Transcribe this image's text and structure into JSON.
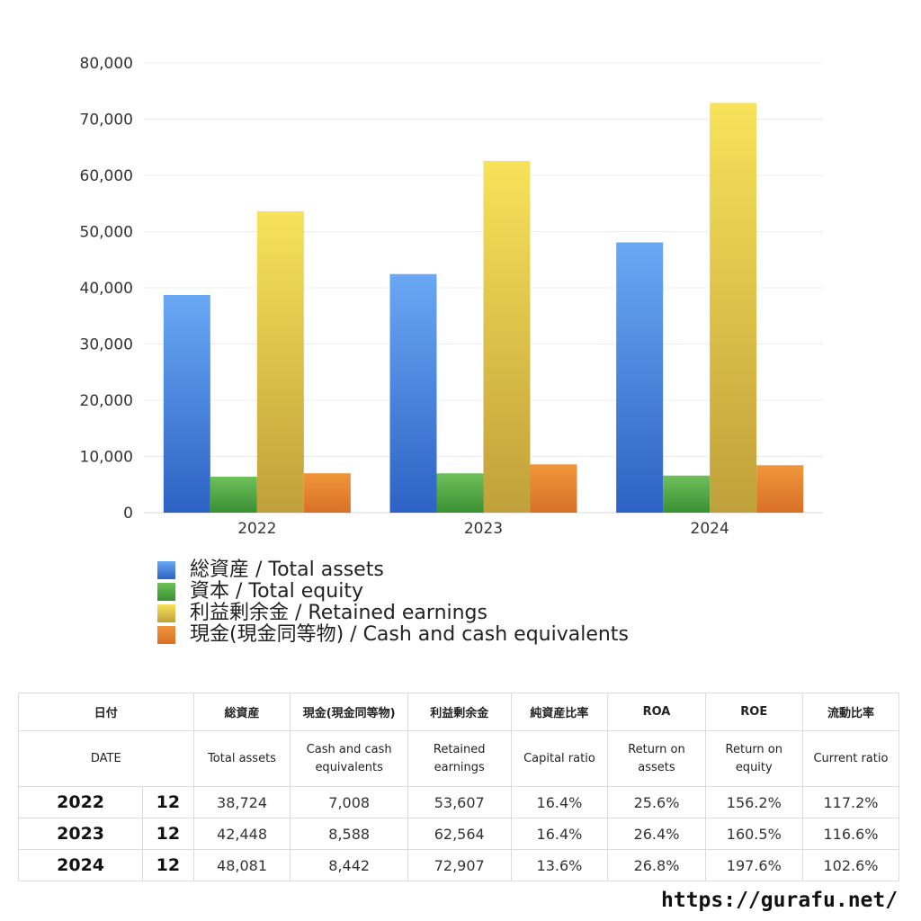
{
  "chart_data": {
    "type": "bar",
    "categories": [
      "2022",
      "2023",
      "2024"
    ],
    "series": [
      {
        "name": "総資産 / Total assets",
        "values": [
          38724,
          42448,
          48081
        ],
        "color_top": "#6aa8f4",
        "color_bottom": "#2d62c4"
      },
      {
        "name": "資本 / Total equity",
        "values": [
          6400,
          7000,
          6600
        ],
        "color_top": "#6ec05a",
        "color_bottom": "#3a8f33"
      },
      {
        "name": "利益剰余金 / Retained earnings",
        "values": [
          53607,
          62564,
          72907
        ],
        "color_top": "#f8e25a",
        "color_bottom": "#c0a03a"
      },
      {
        "name": "現金(現金同等物) / Cash and cash equivalents",
        "values": [
          7008,
          8588,
          8442
        ],
        "color_top": "#f0963a",
        "color_bottom": "#d87028"
      }
    ],
    "ylim": [
      0,
      80000
    ],
    "yticks": [
      0,
      10000,
      20000,
      30000,
      40000,
      50000,
      60000,
      70000,
      80000
    ],
    "ytick_labels": [
      "0",
      "10,000",
      "20,000",
      "30,000",
      "40,000",
      "50,000",
      "60,000",
      "70,000",
      "80,000"
    ],
    "title": "",
    "xlabel": "",
    "ylabel": "",
    "legend_position": "bottom-left"
  },
  "table": {
    "headers_jp": [
      "日付",
      "総資産",
      "現金(現金同等物)",
      "利益剰余金",
      "純資産比率",
      "ROA",
      "ROE",
      "流動比率"
    ],
    "headers_en": [
      "DATE",
      "Total assets",
      "Cash and cash equivalents",
      "Retained earnings",
      "Capital ratio",
      "Return on assets",
      "Return on equity",
      "Current ratio"
    ],
    "rows": [
      {
        "year": "2022",
        "month": "12",
        "total_assets": "38,724",
        "cash": "7,008",
        "retained": "53,607",
        "capital_ratio": "16.4%",
        "roa": "25.6%",
        "roe": "156.2%",
        "current_ratio": "117.2%"
      },
      {
        "year": "2023",
        "month": "12",
        "total_assets": "42,448",
        "cash": "8,588",
        "retained": "62,564",
        "capital_ratio": "16.4%",
        "roa": "26.4%",
        "roe": "160.5%",
        "current_ratio": "116.6%"
      },
      {
        "year": "2024",
        "month": "12",
        "total_assets": "48,081",
        "cash": "8,442",
        "retained": "72,907",
        "capital_ratio": "13.6%",
        "roa": "26.8%",
        "roe": "197.6%",
        "current_ratio": "102.6%"
      }
    ]
  },
  "footer": {
    "url": "https://gurafu.net/"
  }
}
